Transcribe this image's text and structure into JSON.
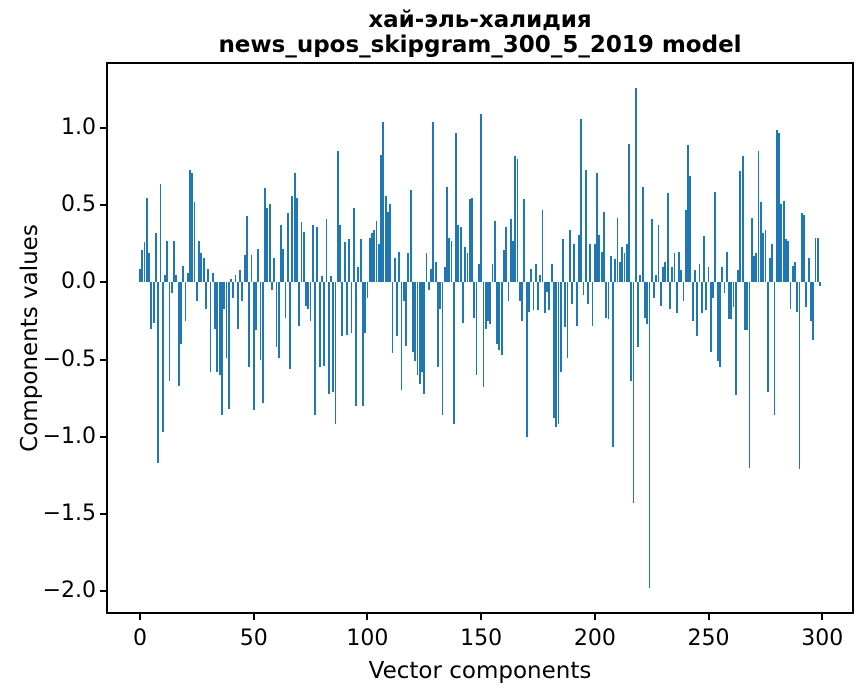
{
  "chart": {
    "title_line1": "хай-эль-халидия",
    "title_line2": "news_upos_skipgram_300_5_2019 model",
    "xlabel": "Vector components",
    "ylabel": "Components values"
  },
  "chart_data": {
    "type": "bar",
    "title": "хай-эль-халидия\nnews_upos_skipgram_300_5_2019 model",
    "xlabel": "Vector components",
    "ylabel": "Components values",
    "bar_color": "#1f77b4",
    "grid": false,
    "legend": null,
    "x_ticks": [
      0,
      50,
      100,
      150,
      200,
      250,
      300
    ],
    "y_ticks": [
      1.0,
      0.5,
      0.0,
      -0.5,
      -1.0,
      -1.5,
      -2.0
    ],
    "y_tick_labels": [
      "1.0",
      "0.5",
      "0.0",
      "−0.5",
      "−1.0",
      "−1.5",
      "−2.0"
    ],
    "xlim": [
      -14.95,
      313.95
    ],
    "ylim": [
      -2.15,
      1.43
    ],
    "x_start": 0,
    "x_step": 1,
    "n_components": 300,
    "values": [
      0.09,
      0.21,
      0.26,
      0.55,
      0.19,
      -0.3,
      -0.26,
      0.32,
      -1.17,
      0.64,
      -0.97,
      0.05,
      0.27,
      -0.64,
      -0.07,
      0.27,
      0.05,
      -0.67,
      -0.4,
      0.11,
      -0.25,
      0.06,
      0.73,
      0.71,
      0.52,
      -0.12,
      0.27,
      0.19,
      0.16,
      -0.17,
      0.09,
      -0.58,
      0.06,
      -0.3,
      -0.58,
      -0.6,
      -0.86,
      -0.17,
      -0.49,
      -0.82,
      0.02,
      -0.1,
      0.05,
      -0.3,
      0.08,
      -0.12,
      0.18,
      0.43,
      -0.55,
      0.18,
      -0.83,
      -0.31,
      0.22,
      -0.5,
      -0.78,
      0.61,
      0.48,
      0.51,
      -0.05,
      0.16,
      -0.42,
      -0.49,
      0.37,
      0.22,
      -0.23,
      0.45,
      -0.56,
      0.56,
      0.71,
      0.55,
      -0.28,
      0.39,
      0.33,
      -0.15,
      -0.17,
      -0.25,
      0.37,
      -0.86,
      0.36,
      -0.55,
      0.04,
      -0.54,
      0.41,
      -0.72,
      0.04,
      -0.71,
      -0.92,
      0.85,
      0.37,
      -0.35,
      0.26,
      -0.34,
      0.28,
      -0.33,
      0.48,
      -0.8,
      0.1,
      0.28,
      -0.8,
      -0.33,
      -0.1,
      0.29,
      0.32,
      0.34,
      0.4,
      0.25,
      0.83,
      1.04,
      0.56,
      0.46,
      0.51,
      -0.46,
      0.16,
      -0.35,
      0.2,
      -0.7,
      -0.12,
      -0.41,
      0.19,
      0.6,
      -0.45,
      -0.51,
      -0.6,
      -0.66,
      -0.58,
      -0.72,
      0.19,
      -0.05,
      0.09,
      1.04,
      0.13,
      -0.55,
      -0.17,
      -0.86,
      0.1,
      0.62,
      0.29,
      0.27,
      -0.92,
      0.97,
      0.37,
      0.36,
      -0.26,
      0.23,
      0.19,
      0.54,
      0.55,
      -0.23,
      -0.6,
      0.12,
      1.09,
      -0.68,
      -0.3,
      -0.25,
      -0.27,
      0.12,
      0.4,
      -0.4,
      -0.44,
      -0.47,
      0.21,
      0.36,
      -0.12,
      0.41,
      0.27,
      0.82,
      0.8,
      -0.12,
      -0.25,
      0.54,
      -1.0,
      -0.19,
      0.09,
      -0.18,
      0.12,
      -0.18,
      0.05,
      0.47,
      -0.2,
      -0.06,
      -0.18,
      0.12,
      -0.88,
      -0.94,
      -0.92,
      -0.58,
      0.28,
      -0.29,
      -0.49,
      0.34,
      -0.14,
      0.25,
      -0.28,
      0.31,
      1.06,
      -0.08,
      0.73,
      -0.14,
      0.25,
      -0.28,
      0.25,
      0.71,
      0.31,
      0.2,
      0.46,
      -0.23,
      -0.24,
      0.17,
      -1.07,
      0.15,
      0.42,
      0.13,
      0.23,
      0.19,
      0.25,
      0.9,
      -0.64,
      -1.43,
      1.26,
      -0.42,
      0.05,
      0.62,
      -0.23,
      -0.27,
      -1.98,
      0.41,
      -0.1,
      0.05,
      0.37,
      -0.15,
      0.1,
      0.13,
      0.58,
      -0.17,
      0.1,
      0.19,
      -0.2,
      0.2,
      0.08,
      -0.12,
      0.47,
      0.89,
      0.69,
      -0.25,
      0.08,
      -0.35,
      0.12,
      -0.2,
      0.3,
      -0.18,
      0.1,
      -0.45,
      -0.1,
      0.59,
      -0.51,
      -0.55,
      0.1,
      -0.07,
      0.2,
      -0.24,
      -0.24,
      -0.16,
      -0.73,
      0.08,
      0.72,
      0.82,
      -0.31,
      -0.31,
      -1.2,
      0.42,
      0.17,
      0.19,
      0.85,
      0.52,
      0.32,
      0.34,
      -0.71,
      0.16,
      0.25,
      -0.86,
      0.99,
      0.97,
      0.51,
      0.53,
      0.28,
      0.27,
      -0.17,
      0.11,
      0.13,
      -0.19,
      -1.21,
      0.45,
      0.44,
      -0.16,
      0.16,
      -0.25,
      -0.37,
      0.29,
      0.29,
      -0.02
    ]
  }
}
